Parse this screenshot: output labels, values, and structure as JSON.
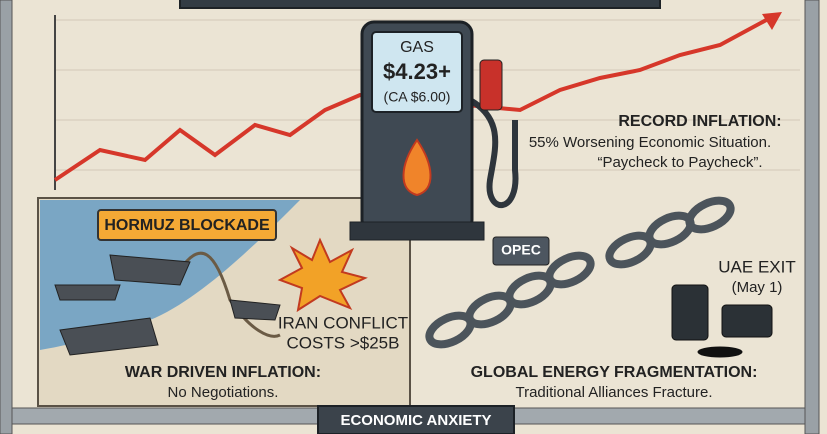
{
  "pump": {
    "label": "GAS",
    "price": "$4.23+",
    "note": "(CA $6.00)"
  },
  "inflation": {
    "title": "RECORD INFLATION:",
    "lines": [
      "55% Worsening Economic Situation.",
      "“Paycheck to Paycheck”."
    ]
  },
  "conflict": {
    "blockade": "HORMUZ BLOCKADE",
    "costs": [
      "IRAN CONFLICT",
      "COSTS >$25B"
    ],
    "title": "WAR DRIVEN INFLATION:",
    "subtitle": "No Negotiations."
  },
  "energy": {
    "opec": "OPEC",
    "exit": [
      "UAE EXIT",
      "(May 1)"
    ],
    "title": "GLOBAL ENERGY FRAGMENTATION:",
    "subtitle": "Traditional Alliances Fracture."
  },
  "footer": {
    "banner": "ECONOMIC ANXIETY"
  }
}
